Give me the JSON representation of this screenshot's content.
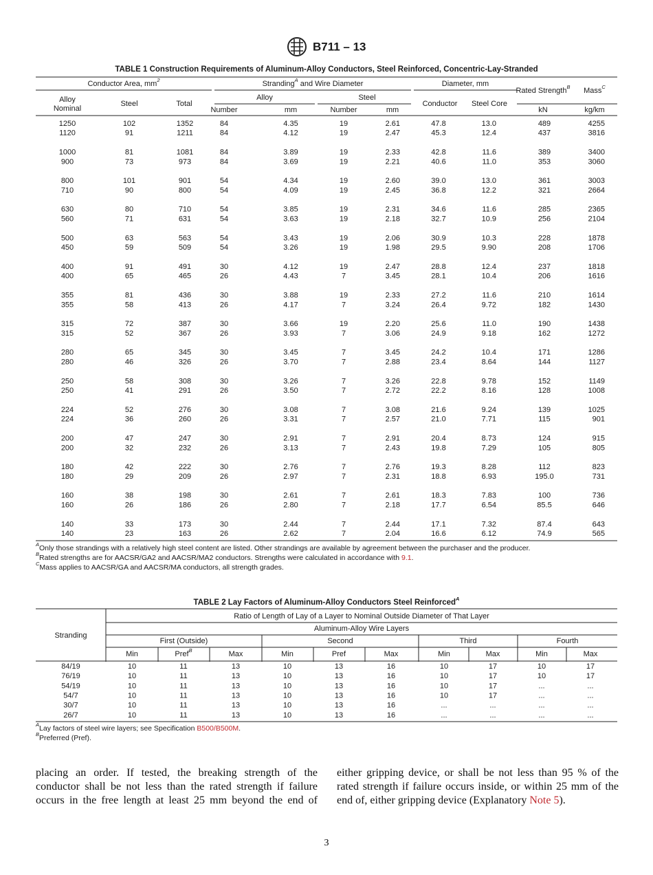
{
  "header": {
    "title": "B711 – 13"
  },
  "table1": {
    "title": "TABLE 1 Construction Requirements of Aluminum-Alloy Conductors, Steel Reinforced, Concentric-Lay-Stranded",
    "headers": {
      "conductor_area": {
        "text": "Conductor Area, mm",
        "sup": "2"
      },
      "stranding": {
        "text": "Stranding",
        "sup": "A",
        "tail": " and Wire Diameter"
      },
      "diameter": "Diameter, mm",
      "rated_strength": {
        "text": "Rated Strength",
        "sup": "B"
      },
      "mass": {
        "text": "Mass",
        "sup": "C"
      },
      "alloy": "Alloy",
      "steel_group": "Steel",
      "alloy_nominal": [
        "Alloy",
        "Nominal"
      ],
      "steel": "Steel",
      "total": "Total",
      "conductor": "Conductor",
      "steel_core": "Steel Core",
      "units": [
        "Number",
        "mm",
        "Number",
        "mm",
        "kN",
        "kg/km"
      ]
    },
    "rows": [
      [
        "1250",
        "102",
        "1352",
        "84",
        "4.35",
        "19",
        "2.61",
        "47.8",
        "13.0",
        "489",
        "4255"
      ],
      [
        "1120",
        "91",
        "1211",
        "84",
        "4.12",
        "19",
        "2.47",
        "45.3",
        "12.4",
        "437",
        "3816"
      ],
      [
        "1000",
        "81",
        "1081",
        "84",
        "3.89",
        "19",
        "2.33",
        "42.8",
        "11.6",
        "389",
        "3400"
      ],
      [
        "900",
        "73",
        "973",
        "84",
        "3.69",
        "19",
        "2.21",
        "40.6",
        "11.0",
        "353",
        "3060"
      ],
      [
        "800",
        "101",
        "901",
        "54",
        "4.34",
        "19",
        "2.60",
        "39.0",
        "13.0",
        "361",
        "3003"
      ],
      [
        "710",
        "90",
        "800",
        "54",
        "4.09",
        "19",
        "2.45",
        "36.8",
        "12.2",
        "321",
        "2664"
      ],
      [
        "630",
        "80",
        "710",
        "54",
        "3.85",
        "19",
        "2.31",
        "34.6",
        "11.6",
        "285",
        "2365"
      ],
      [
        "560",
        "71",
        "631",
        "54",
        "3.63",
        "19",
        "2.18",
        "32.7",
        "10.9",
        "256",
        "2104"
      ],
      [
        "500",
        "63",
        "563",
        "54",
        "3.43",
        "19",
        "2.06",
        "30.9",
        "10.3",
        "228",
        "1878"
      ],
      [
        "450",
        "59",
        "509",
        "54",
        "3.26",
        "19",
        "1.98",
        "29.5",
        "9.90",
        "208",
        "1706"
      ],
      [
        "400",
        "91",
        "491",
        "30",
        "4.12",
        "19",
        "2.47",
        "28.8",
        "12.4",
        "237",
        "1818"
      ],
      [
        "400",
        "65",
        "465",
        "26",
        "4.43",
        "7",
        "3.45",
        "28.1",
        "10.4",
        "206",
        "1616"
      ],
      [
        "355",
        "81",
        "436",
        "30",
        "3.88",
        "19",
        "2.33",
        "27.2",
        "11.6",
        "210",
        "1614"
      ],
      [
        "355",
        "58",
        "413",
        "26",
        "4.17",
        "7",
        "3.24",
        "26.4",
        "9.72",
        "182",
        "1430"
      ],
      [
        "315",
        "72",
        "387",
        "30",
        "3.66",
        "19",
        "2.20",
        "25.6",
        "11.0",
        "190",
        "1438"
      ],
      [
        "315",
        "52",
        "367",
        "26",
        "3.93",
        "7",
        "3.06",
        "24.9",
        "9.18",
        "162",
        "1272"
      ],
      [
        "280",
        "65",
        "345",
        "30",
        "3.45",
        "7",
        "3.45",
        "24.2",
        "10.4",
        "171",
        "1286"
      ],
      [
        "280",
        "46",
        "326",
        "26",
        "3.70",
        "7",
        "2.88",
        "23.4",
        "8.64",
        "144",
        "1127"
      ],
      [
        "250",
        "58",
        "308",
        "30",
        "3.26",
        "7",
        "3.26",
        "22.8",
        "9.78",
        "152",
        "1149"
      ],
      [
        "250",
        "41",
        "291",
        "26",
        "3.50",
        "7",
        "2.72",
        "22.2",
        "8.16",
        "128",
        "1008"
      ],
      [
        "224",
        "52",
        "276",
        "30",
        "3.08",
        "7",
        "3.08",
        "21.6",
        "9.24",
        "139",
        "1025"
      ],
      [
        "224",
        "36",
        "260",
        "26",
        "3.31",
        "7",
        "2.57",
        "21.0",
        "7.71",
        "115",
        "901"
      ],
      [
        "200",
        "47",
        "247",
        "30",
        "2.91",
        "7",
        "2.91",
        "20.4",
        "8.73",
        "124",
        "915"
      ],
      [
        "200",
        "32",
        "232",
        "26",
        "3.13",
        "7",
        "2.43",
        "19.8",
        "7.29",
        "105",
        "805"
      ],
      [
        "180",
        "42",
        "222",
        "30",
        "2.76",
        "7",
        "2.76",
        "19.3",
        "8.28",
        "112",
        "823"
      ],
      [
        "180",
        "29",
        "209",
        "26",
        "2.97",
        "7",
        "2.31",
        "18.8",
        "6.93",
        "195.0",
        "731"
      ],
      [
        "160",
        "38",
        "198",
        "30",
        "2.61",
        "7",
        "2.61",
        "18.3",
        "7.83",
        "100",
        "736"
      ],
      [
        "160",
        "26",
        "186",
        "26",
        "2.80",
        "7",
        "2.18",
        "17.7",
        "6.54",
        "85.5",
        "646"
      ],
      [
        "140",
        "33",
        "173",
        "30",
        "2.44",
        "7",
        "2.44",
        "17.1",
        "7.32",
        "87.4",
        "643"
      ],
      [
        "140",
        "23",
        "163",
        "26",
        "2.62",
        "7",
        "2.04",
        "16.6",
        "6.12",
        "74.9",
        "565"
      ]
    ],
    "footnotes": [
      {
        "mark": "A",
        "text": "Only those strandings with a relatively high steel content are listed. Other strandings are available by agreement between the purchaser and the producer."
      },
      {
        "mark": "B",
        "text": "Rated strengths are for AACSR/GA2 and AACSR/MA2 conductors. Strengths were calculated in accordance with ",
        "link": "9.1",
        "tail": "."
      },
      {
        "mark": "C",
        "text": "Mass applies to AACSR/GA and AACSR/MA conductors, all strength grades."
      }
    ]
  },
  "table2": {
    "title": {
      "text": "TABLE 2 Lay Factors of Aluminum-Alloy Conductors Steel Reinforced",
      "sup": "A"
    },
    "headers": {
      "stranding": "Stranding",
      "ratio": "Ratio of Length of Lay of a Layer to Nominal Outside Diameter of That Layer",
      "layers": "Aluminum-Alloy Wire Layers",
      "groups": [
        "First (Outside)",
        "Second",
        "Third",
        "Fourth"
      ],
      "sub": [
        "Min",
        {
          "text": "Pref",
          "sup": "B"
        },
        "Max",
        "Min",
        "Pref",
        "Max",
        "Min",
        "Max",
        "Min",
        "Max"
      ]
    },
    "rows": [
      [
        "84/19",
        "10",
        "11",
        "13",
        "10",
        "13",
        "16",
        "10",
        "17",
        "10",
        "17"
      ],
      [
        "76/19",
        "10",
        "11",
        "13",
        "10",
        "13",
        "16",
        "10",
        "17",
        "10",
        "17"
      ],
      [
        "54/19",
        "10",
        "11",
        "13",
        "10",
        "13",
        "16",
        "10",
        "17",
        "...",
        "..."
      ],
      [
        "54/7",
        "10",
        "11",
        "13",
        "10",
        "13",
        "16",
        "10",
        "17",
        "...",
        "..."
      ],
      [
        "30/7",
        "10",
        "11",
        "13",
        "10",
        "13",
        "16",
        "...",
        "...",
        "...",
        "..."
      ],
      [
        "26/7",
        "10",
        "11",
        "13",
        "10",
        "13",
        "16",
        "...",
        "...",
        "...",
        "..."
      ]
    ],
    "footnotes": [
      {
        "mark": "A",
        "text": "Lay factors of steel wire layers; see Specification ",
        "link": "B500/B500M",
        "tail": "."
      },
      {
        "mark": "B",
        "text": "Preferred (Pref)."
      }
    ]
  },
  "body": {
    "left": "placing an order. If tested, the breaking strength of the conductor shall be not less than the rated strength if failure occurs in the free length at least 25 mm beyond the end of",
    "right": {
      "text": "either gripping device, or shall be not less than 95 % of the rated strength if failure occurs inside, or within 25 mm of the end of, either gripping device (Explanatory ",
      "link": "Note 5",
      "tail": ")."
    }
  },
  "page_number": "3"
}
